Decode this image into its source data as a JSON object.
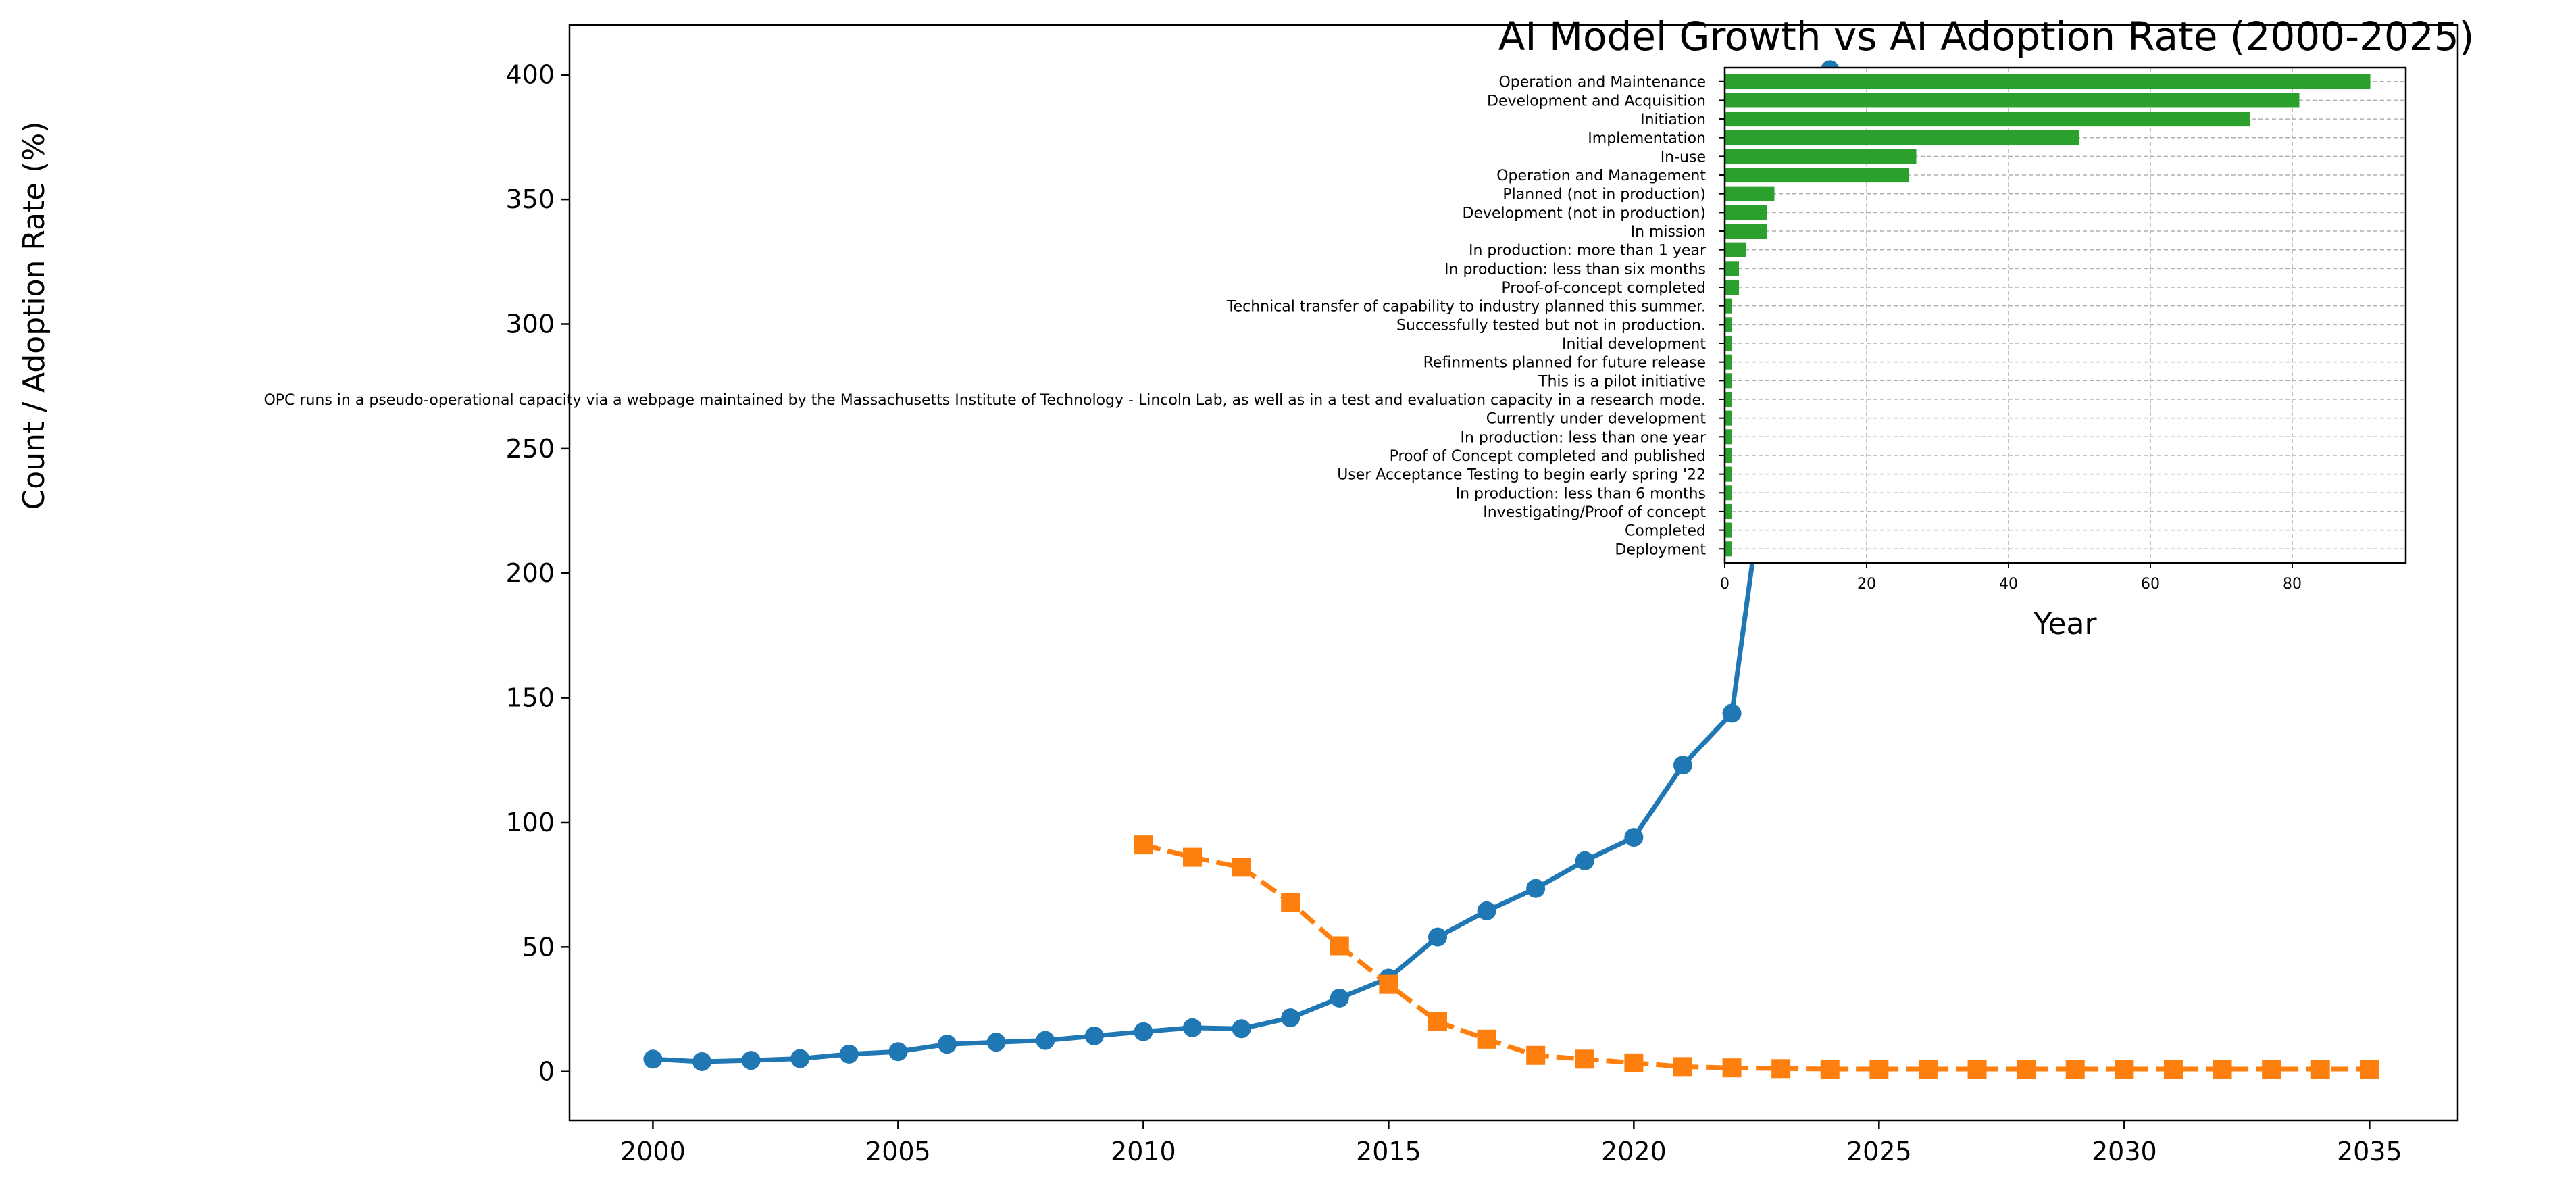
{
  "chart_data": [
    {
      "type": "line",
      "title": "AI Model Growth vs AI Adoption Rate (2000-2025)",
      "ylabel": "Count / Adoption Rate (%)",
      "xlim": [
        1998.3,
        2036.8
      ],
      "ylim": [
        -19.6,
        420
      ],
      "xticks": [
        2000,
        2005,
        2010,
        2015,
        2020,
        2025,
        2030,
        2035
      ],
      "yticks": [
        0,
        50,
        100,
        150,
        200,
        250,
        300,
        350,
        400
      ],
      "grid": false,
      "series": [
        {
          "color": "#1f77b4",
          "marker": "circle",
          "linestyle": "solid",
          "x": [
            2000,
            2001,
            2002,
            2003,
            2004,
            2005,
            2006,
            2007,
            2008,
            2009,
            2010,
            2011,
            2012,
            2013,
            2014,
            2015,
            2016,
            2017,
            2018,
            2019,
            2020,
            2021,
            2022,
            2023,
            2024
          ],
          "values": [
            5,
            4,
            4.5,
            5.2,
            7,
            8,
            11,
            11.8,
            12.5,
            14.3,
            16,
            17.6,
            17.2,
            21.6,
            29.5,
            37.5,
            54,
            64.5,
            73.5,
            84.6,
            94,
            123,
            143.8,
            289,
            402
          ]
        },
        {
          "color": "#ff7f0e",
          "marker": "square",
          "linestyle": "dashed",
          "x": [
            2010,
            2011,
            2012,
            2013,
            2014,
            2015,
            2016,
            2017,
            2018,
            2019,
            2020,
            2021,
            2022,
            2023,
            2024,
            2025,
            2026,
            2027,
            2028,
            2029,
            2030,
            2031,
            2032,
            2033,
            2034,
            2035
          ],
          "values": [
            91,
            86,
            82,
            68,
            50.5,
            35,
            20,
            13,
            6.5,
            5,
            3.5,
            2,
            1.5,
            1.2,
            1,
            1,
            1,
            1,
            1,
            1,
            1,
            1,
            1,
            1,
            1,
            1
          ]
        }
      ]
    },
    {
      "type": "bar",
      "orientation": "horizontal",
      "xlabel": "Year",
      "xlim": [
        0,
        96
      ],
      "xticks": [
        0,
        20,
        40,
        60,
        80
      ],
      "grid": true,
      "color": "#2ca02c",
      "categories": [
        "Operation and Maintenance",
        "Development and Acquisition",
        "Initiation",
        "Implementation",
        "In-use",
        "Operation and Management",
        "Planned (not in production)",
        "Development (not in production)",
        "In mission",
        "In production: more than 1 year",
        "In production: less than six months",
        "Proof-of-concept completed",
        "Technical transfer of capability to industry planned this summer.",
        "Successfully tested but not in production.",
        "Initial development",
        "Refinments planned for future release",
        "This is a pilot initiative",
        "OPC runs in a pseudo-operational capacity via a webpage maintained by the Massachusetts Institute of Technology - Lincoln Lab, as well as in a test and evaluation capacity in a research mode.",
        "Currently under development",
        "In production: less than one year",
        "Proof of Concept completed and published",
        "User Acceptance Testing to begin early spring '22",
        "In production: less than 6 months",
        "Investigating/Proof of concept",
        "Completed",
        "Deployment"
      ],
      "values": [
        91,
        81,
        74,
        50,
        27,
        26,
        7,
        6,
        6,
        3,
        2,
        2,
        1,
        1,
        1,
        1,
        1,
        1,
        1,
        1,
        1,
        1,
        1,
        1,
        1,
        1
      ]
    }
  ]
}
